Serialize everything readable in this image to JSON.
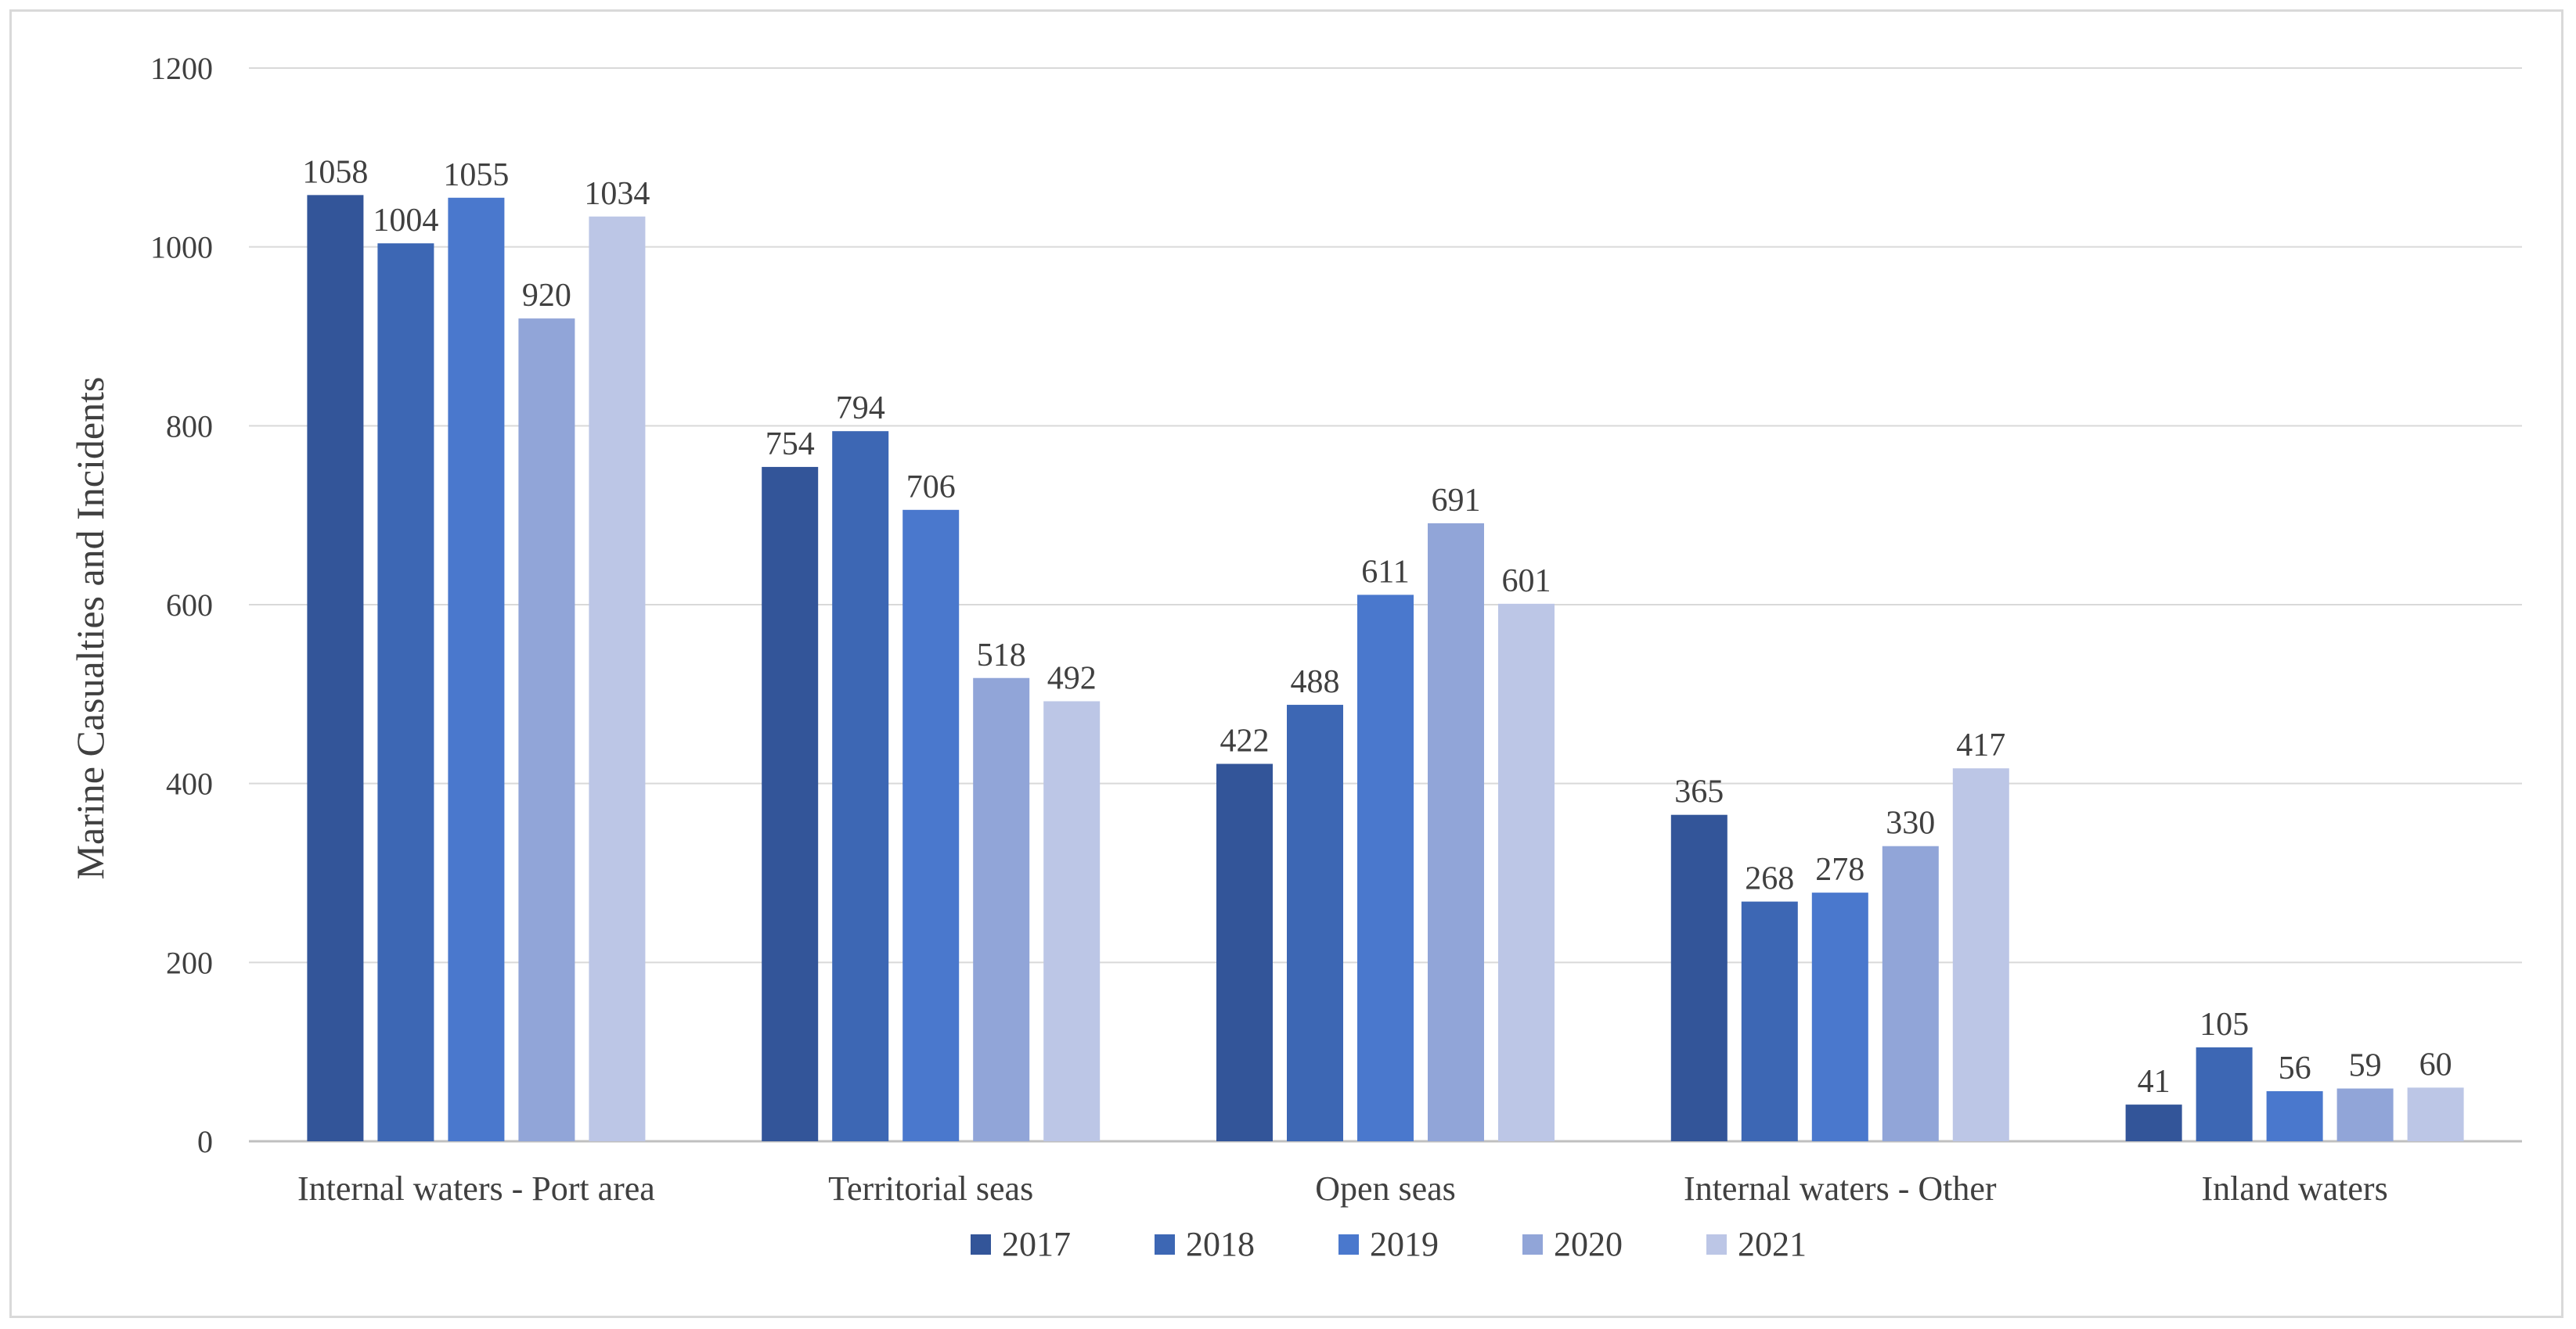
{
  "chart_data": {
    "type": "bar",
    "title": "",
    "xlabel": "",
    "ylabel": "Marine Casualties and Incidents",
    "ylim": [
      0,
      1200
    ],
    "yticks": [
      0,
      200,
      400,
      600,
      800,
      1000,
      1200
    ],
    "grid": true,
    "legend_position": "bottom",
    "categories": [
      "Internal waters - Port area",
      "Territorial seas",
      "Open seas",
      "Internal waters - Other",
      "Inland waters"
    ],
    "series": [
      {
        "name": "2017",
        "color": "#335599",
        "values": [
          1058,
          754,
          422,
          365,
          41
        ]
      },
      {
        "name": "2018",
        "color": "#3d67b4",
        "values": [
          1004,
          794,
          488,
          268,
          105
        ]
      },
      {
        "name": "2019",
        "color": "#4a78cd",
        "values": [
          1055,
          706,
          611,
          278,
          56
        ]
      },
      {
        "name": "2020",
        "color": "#91a5d8",
        "values": [
          920,
          518,
          691,
          330,
          59
        ]
      },
      {
        "name": "2021",
        "color": "#bcc6e6",
        "values": [
          1034,
          492,
          601,
          417,
          60
        ]
      }
    ]
  }
}
